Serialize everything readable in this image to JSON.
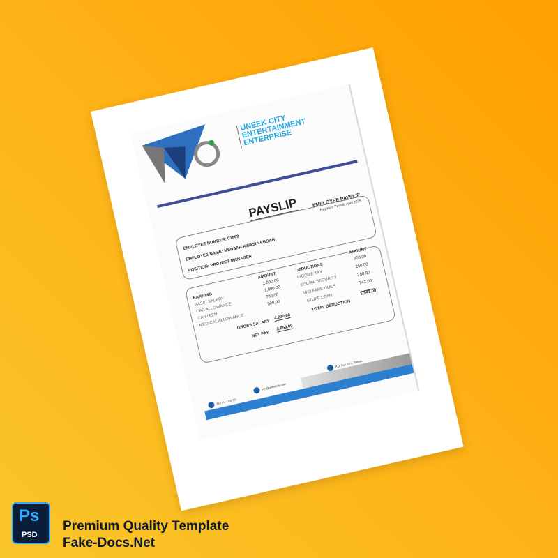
{
  "document": {
    "company": [
      "UNEEK CITY",
      "ENTERTAINMENT",
      "ENTERPRISE"
    ],
    "title": "PAYSLIP",
    "subtitle": "EMPLOYEE PAYSLIP",
    "payment_period": "Payment Period: April 2025",
    "employee_number": "EMPLOYEE NUMBER: 01869",
    "employee_name": "EMPLOYEE NAME: MENSAH KWASI YEBOAH",
    "position": "POSITION: PROJECT MANAGER",
    "earnings": {
      "header": "EARNING",
      "amount_header": "AMOUNT",
      "items": [
        {
          "label": "BASIC SALARY",
          "amount": "2,000.00"
        },
        {
          "label": "CAR ALLOWANCE",
          "amount": "1,000.00"
        },
        {
          "label": "CANTEEN",
          "amount": "700.00"
        },
        {
          "label": "MEDICAL ALLOWANCE",
          "amount": "500.00"
        }
      ],
      "gross_label": "GROSS SALARY",
      "gross": "4,200.00",
      "net_label": "NET PAY",
      "net": "2,659.00"
    },
    "deductions": {
      "header": "DEDUCTIONS",
      "amount_header": "AMOUNT",
      "items": [
        {
          "label": "INCOME TAX",
          "amount": "300.00"
        },
        {
          "label": "SOCIAL SECURITY",
          "amount": "250.00"
        },
        {
          "label": "WELFARE DUES",
          "amount": "250.00"
        },
        {
          "label": "STUFF LOAN",
          "amount": "741.00"
        }
      ],
      "total_label": "TOTAL DEDUCTION",
      "total": "1,541.00"
    },
    "footer": {
      "phone": "233 XX XXX YG",
      "web": "info@uneekcity.com",
      "address": "P.O. Box XXX, Tarkwa"
    }
  },
  "promo": {
    "badge_top": "Ps",
    "badge_bottom": "PSD",
    "line1": "Premium Quality Template",
    "line2": "Fake-Docs.Net"
  },
  "colors": {
    "accent_blue": "#2d7fd0",
    "brand_cyan": "#23a6dd",
    "navy": "#3e4f96",
    "background": "#ffa80a"
  }
}
